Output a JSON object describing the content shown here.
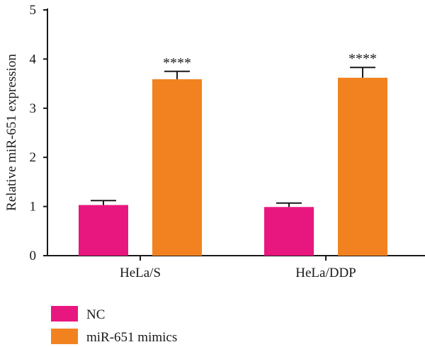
{
  "chart_data": {
    "type": "bar",
    "title": "",
    "xlabel": "",
    "ylabel": "Relative miR-651 expression",
    "ylim": [
      0,
      5
    ],
    "yticks": [
      0,
      1,
      2,
      3,
      4,
      5
    ],
    "categories": [
      "HeLa/S",
      "HeLa/DDP"
    ],
    "series": [
      {
        "name": "NC",
        "color": "#e8177f",
        "values": [
          1.03,
          0.99
        ],
        "errors": [
          0.09,
          0.08
        ]
      },
      {
        "name": "miR-651 mimics",
        "color": "#f28220",
        "values": [
          3.59,
          3.62
        ],
        "errors": [
          0.16,
          0.21
        ]
      }
    ],
    "annotations": [
      {
        "category": "HeLa/S",
        "series": "miR-651 mimics",
        "text": "****"
      },
      {
        "category": "HeLa/DDP",
        "series": "miR-651 mimics",
        "text": "****"
      }
    ],
    "grid": false,
    "legend_position": "bottom-left"
  }
}
